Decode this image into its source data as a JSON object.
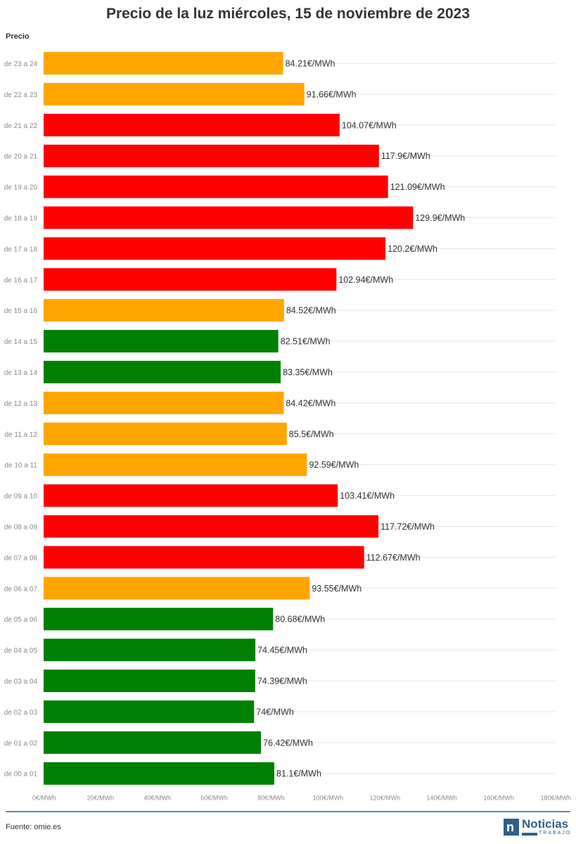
{
  "chart_data": {
    "type": "bar",
    "orientation": "horizontal",
    "title": "Precio de la luz miércoles, 15 de noviembre de 2023",
    "ylabel": "Precio",
    "xlim": [
      0,
      180
    ],
    "xticks": [
      "0€/MWh",
      "20€/MWh",
      "40€/MWh",
      "60€/MWh",
      "80€/MWh",
      "100€/MWh",
      "120€/MWh",
      "140€/MWh",
      "160€/MWh",
      "180€/MWh"
    ],
    "grid": true,
    "categories": [
      "de 23 a 24",
      "de 22 a 23",
      "de 21 a 22",
      "de 20 a 21",
      "de 19 a 20",
      "de 18 a 19",
      "de 17 a 18",
      "de 16 a 17",
      "de 15 a 16",
      "de 14 a 15",
      "de 13 a 14",
      "de 12 a 13",
      "de 11 a 12",
      "de 10 a 11",
      "de 09 a 10",
      "de 08 a 09",
      "de 07 a 08",
      "de 06 a 07",
      "de 05 a 06",
      "de 04 a 05",
      "de 03 a 04",
      "de 02 a 03",
      "de 01 a 02",
      "de 00 a 01"
    ],
    "values": [
      84.21,
      91.66,
      104.07,
      117.9,
      121.09,
      129.9,
      120.2,
      102.94,
      84.52,
      82.51,
      83.35,
      84.42,
      85.5,
      92.59,
      103.41,
      117.72,
      112.67,
      93.55,
      80.68,
      74.45,
      74.39,
      74,
      76.42,
      81.1
    ],
    "value_labels": [
      "84.21€/MWh",
      "91.66€/MWh",
      "104.07€/MWh",
      "117.9€/MWh",
      "121.09€/MWh",
      "129.9€/MWh",
      "120.2€/MWh",
      "102.94€/MWh",
      "84.52€/MWh",
      "82.51€/MWh",
      "83.35€/MWh",
      "84.42€/MWh",
      "85.5€/MWh",
      "92.59€/MWh",
      "103.41€/MWh",
      "117.72€/MWh",
      "112.67€/MWh",
      "93.55€/MWh",
      "80.68€/MWh",
      "74.45€/MWh",
      "74.39€/MWh",
      "74€/MWh",
      "76.42€/MWh",
      "81.1€/MWh"
    ],
    "bar_colors": [
      "#FFA500",
      "#FFA500",
      "#FF0000",
      "#FF0000",
      "#FF0000",
      "#FF0000",
      "#FF0000",
      "#FF0000",
      "#FFA500",
      "#008000",
      "#008000",
      "#FFA500",
      "#FFA500",
      "#FFA500",
      "#FF0000",
      "#FF0000",
      "#FF0000",
      "#FFA500",
      "#008000",
      "#008000",
      "#008000",
      "#008000",
      "#008000",
      "#008000"
    ]
  },
  "footer": {
    "source": "Fuente: omie.es",
    "logo_mark": "n",
    "logo_main": "Noticias",
    "logo_sub": "TRABAJO"
  },
  "colors": {
    "rule": "#5b86a6",
    "brand": "#2f5f8a"
  }
}
